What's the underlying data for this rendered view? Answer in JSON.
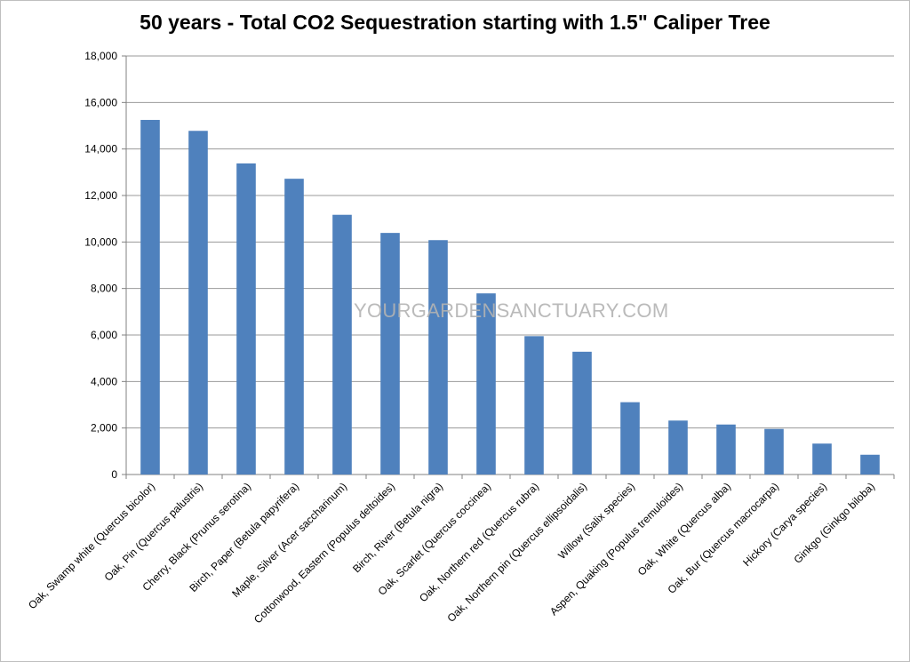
{
  "chart_data": {
    "type": "bar",
    "title": "50 years - Total CO2 Sequestration starting with 1.5\" Caliper Tree",
    "xlabel": "",
    "ylabel": "",
    "ylim": [
      0,
      18000
    ],
    "yticks": [
      0,
      2000,
      4000,
      6000,
      8000,
      10000,
      12000,
      14000,
      16000,
      18000
    ],
    "ytick_labels": [
      "0",
      "2,000",
      "4,000",
      "6,000",
      "8,000",
      "10,000",
      "12,000",
      "14,000",
      "16,000",
      "18,000"
    ],
    "grid": true,
    "legend": "none",
    "bar_color": "#4f81bd",
    "grid_color": "#999999",
    "categories": [
      "Oak, Swamp white (Quercus bicolor)",
      "Oak, Pin (Quercus palustris)",
      "Cherry, Black (Prunus serotina)",
      "Birch, Paper (Betula papyrifera)",
      "Maple, Silver (Acer saccharinum)",
      "Cottonwood, Eastern (Populus deltoides)",
      "Birch, River (Betula nigra)",
      "Oak, Scarlet (Quercus coccinea)",
      "Oak, Northern red (Quercus rubra)",
      "Oak, Northern pin (Quercus ellipsoidalis)",
      "Willow (Salix species)",
      "Aspen, Quaking (Populus tremuloides)",
      "Oak, White (Quercus alba)",
      "Oak, Bur (Quercus macrocarpa)",
      "Hickory (Carya species)",
      "Ginkgo (Ginkgo biloba)"
    ],
    "values": [
      15250,
      14780,
      13380,
      12720,
      11170,
      10390,
      10080,
      7790,
      5950,
      5280,
      3110,
      2320,
      2150,
      1960,
      1330,
      850
    ]
  },
  "watermark": "YOURGARDENSANCTUARY.COM"
}
